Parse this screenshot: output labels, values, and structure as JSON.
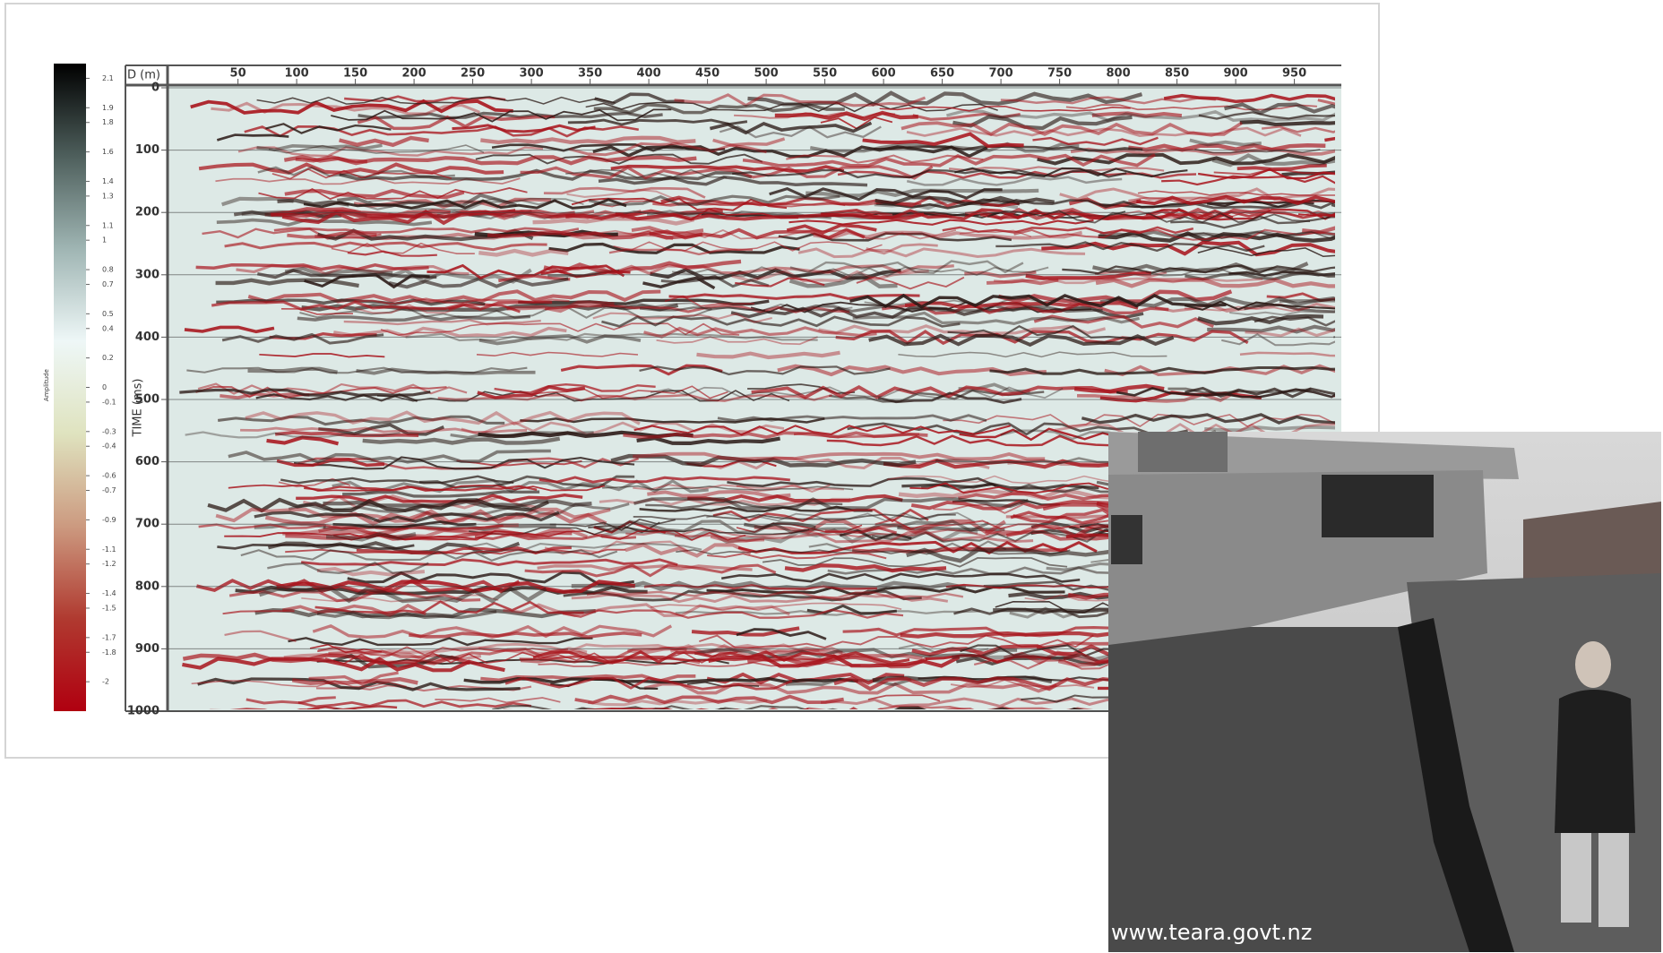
{
  "chart_data": {
    "type": "seismic-section",
    "xlabel": "D (m)",
    "ylabel": "TIME (ms)",
    "xlim": [
      -10,
      990
    ],
    "xticks": [
      50,
      100,
      150,
      200,
      250,
      300,
      350,
      400,
      450,
      500,
      550,
      600,
      650,
      700,
      750,
      800,
      850,
      900,
      950
    ],
    "ylim": [
      0,
      1000
    ],
    "yticks": [
      0,
      100,
      200,
      300,
      400,
      500,
      600,
      700,
      800,
      900,
      1000
    ],
    "grid": true,
    "colorbar": {
      "label": "Amplitude",
      "lim": [
        -2.2,
        2.2
      ],
      "ticks": [
        2.1,
        1.9,
        1.8,
        1.6,
        1.4,
        1.3,
        1.1,
        1.0,
        0.8,
        0.7,
        0.5,
        0.4,
        0.2,
        0.0,
        -0.1,
        -0.3,
        -0.4,
        -0.6,
        -0.7,
        -0.9,
        -1.1,
        -1.2,
        -1.4,
        -1.5,
        -1.7,
        -1.8,
        -2.0
      ],
      "colors": [
        "#000000",
        "#4e5f5c",
        "#9fb5b3",
        "#eef7f7",
        "#dfe3bf",
        "#cc9a80",
        "#b03a30",
        "#b00010"
      ]
    }
  },
  "photo": {
    "caption": "www.teara.govt.nz"
  }
}
